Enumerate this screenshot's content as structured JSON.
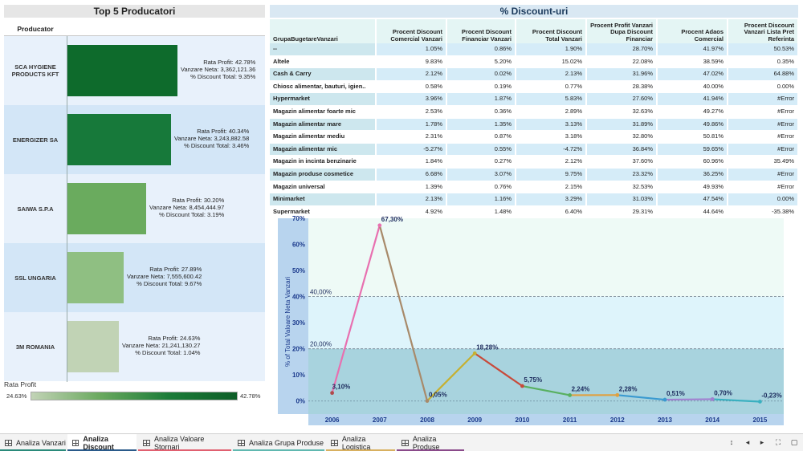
{
  "left": {
    "title": "Top 5 Producatori",
    "col_header": "Producator",
    "producers": [
      {
        "name": "SCA HYGIENE PRODUCTS KFT",
        "profit": "Rata Profit: 42.78%",
        "sales": "Vanzare Neta: 3,362,121.36",
        "discount": "% Discount Total: 9.35%",
        "bar_fraction": 0.64,
        "color": "#0e6b2c",
        "bg": "#e8f1fb"
      },
      {
        "name": "ENERGIZER SA",
        "profit": "Rata Profit: 40.34%",
        "sales": "Vanzare Neta: 3,243,882.58",
        "discount": "% Discount Total: 3.46%",
        "bar_fraction": 0.6,
        "color": "#17793a",
        "bg": "#d3e6f7"
      },
      {
        "name": "SAIWA S.P.A",
        "profit": "Rata Profit: 30.20%",
        "sales": "Vanzare Neta: 8,454,444.97",
        "discount": "% Discount Total: 3.19%",
        "bar_fraction": 0.46,
        "color": "#6aab5e",
        "bg": "#e8f1fb"
      },
      {
        "name": "SSL UNGARIA",
        "profit": "Rata Profit: 27.89%",
        "sales": "Vanzare Neta: 7,555,600.42",
        "discount": "% Discount Total: 9.67%",
        "bar_fraction": 0.33,
        "color": "#8fbf82",
        "bg": "#d3e6f7"
      },
      {
        "name": "3M ROMANIA",
        "profit": "Rata Profit: 24.63%",
        "sales": "Vanzare Neta: 21,241,130.27",
        "discount": "% Discount Total: 1.04%",
        "bar_fraction": 0.3,
        "color": "#c1d3b5",
        "bg": "#e8f1fb"
      }
    ],
    "legend": {
      "title": "Rata Profit",
      "min": "24.63%",
      "max": "42.78%"
    }
  },
  "table": {
    "title": "% Discount-uri",
    "headers": [
      "GrupaBugetareVanzari",
      "Procent Discount Comercial Vanzari",
      "Procent Discount Financiar Vanzari",
      "Procent Discount Total Vanzari",
      "Procent Profit Vanzari Dupa Discount Financiar",
      "Procent Adaos Comercial",
      "Procent Discount Vanzari Lista Pret Referinta"
    ],
    "rows": [
      [
        "--",
        "1.05%",
        "0.86%",
        "1.90%",
        "28.70%",
        "41.97%",
        "50.53%"
      ],
      [
        "Altele",
        "9.83%",
        "5.20%",
        "15.02%",
        "22.08%",
        "38.59%",
        "0.35%"
      ],
      [
        "Cash & Carry",
        "2.12%",
        "0.02%",
        "2.13%",
        "31.96%",
        "47.02%",
        "64.88%"
      ],
      [
        "Chiosc alimentar, bauturi, igien..",
        "0.58%",
        "0.19%",
        "0.77%",
        "28.38%",
        "40.00%",
        "0.00%"
      ],
      [
        "Hypermarket",
        "3.96%",
        "1.87%",
        "5.83%",
        "27.60%",
        "41.94%",
        "#Error"
      ],
      [
        "Magazin alimentar foarte mic",
        "2.53%",
        "0.36%",
        "2.89%",
        "32.63%",
        "49.27%",
        "#Error"
      ],
      [
        "Magazin alimentar mare",
        "1.78%",
        "1.35%",
        "3.13%",
        "31.89%",
        "49.86%",
        "#Error"
      ],
      [
        "Magazin alimentar mediu",
        "2.31%",
        "0.87%",
        "3.18%",
        "32.80%",
        "50.81%",
        "#Error"
      ],
      [
        "Magazin alimentar mic",
        "-5.27%",
        "0.55%",
        "-4.72%",
        "36.84%",
        "59.65%",
        "#Error"
      ],
      [
        "Magazin in incinta benzinarie",
        "1.84%",
        "0.27%",
        "2.12%",
        "37.60%",
        "60.96%",
        "35.49%"
      ],
      [
        "Magazin produse cosmetice",
        "6.68%",
        "3.07%",
        "9.75%",
        "23.32%",
        "36.25%",
        "#Error"
      ],
      [
        "Magazin universal",
        "1.39%",
        "0.76%",
        "2.15%",
        "32.53%",
        "49.93%",
        "#Error"
      ],
      [
        "Minimarket",
        "2.13%",
        "1.16%",
        "3.29%",
        "31.03%",
        "47.54%",
        "0.00%"
      ],
      [
        "Supermarket",
        "4.92%",
        "1.48%",
        "6.40%",
        "29.31%",
        "44.64%",
        "-35.38%"
      ]
    ]
  },
  "chart_data": {
    "type": "line",
    "x": [
      "2006",
      "2007",
      "2008",
      "2009",
      "2010",
      "2011",
      "2012",
      "2013",
      "2014",
      "2015"
    ],
    "values": [
      3.1,
      67.3,
      0.05,
      18.28,
      5.75,
      2.24,
      2.28,
      0.51,
      0.7,
      -0.23
    ],
    "labels": [
      "3,10%",
      "67,30%",
      "0,05%",
      "18,28%",
      "5,75%",
      "2,24%",
      "2,28%",
      "0,51%",
      "0,70%",
      "-0,23%"
    ],
    "point_colors": [
      "#b04a4a",
      "#e870b0",
      "#a88a6a",
      "#c6b030",
      "#c84a3a",
      "#58b060",
      "#e0a040",
      "#3a9ad0",
      "#a080d0",
      "#3ab0c0"
    ],
    "ylabel": "% of Total Valoare Neta Vanzari",
    "ylim": [
      -5,
      70
    ],
    "yticks": [
      "0%",
      "10%",
      "20%",
      "30%",
      "40%",
      "50%",
      "60%",
      "70%"
    ],
    "reference_lines": [
      {
        "value": 40,
        "label": "40,00%"
      },
      {
        "value": 20,
        "label": "20,00%"
      }
    ],
    "band_colors": {
      "top": "#eefaf6",
      "mid": "#def4fb",
      "low": "#a8d3de"
    }
  },
  "tabs": [
    {
      "label": "Analiza Vanzari",
      "color": "#2a8a7a",
      "active": false
    },
    {
      "label": "Analiza Discount",
      "color": "#2a5a8a",
      "active": true
    },
    {
      "label": "Analiza Valoare Stornari",
      "color": "#e06070",
      "active": false
    },
    {
      "label": "Analiza Grupa Produse",
      "color": "#60b8b0",
      "active": false
    },
    {
      "label": "Analiza Logistica",
      "color": "#d8b060",
      "active": false
    },
    {
      "label": "Analiza Produse",
      "color": "#8a4a8a",
      "active": false
    }
  ]
}
